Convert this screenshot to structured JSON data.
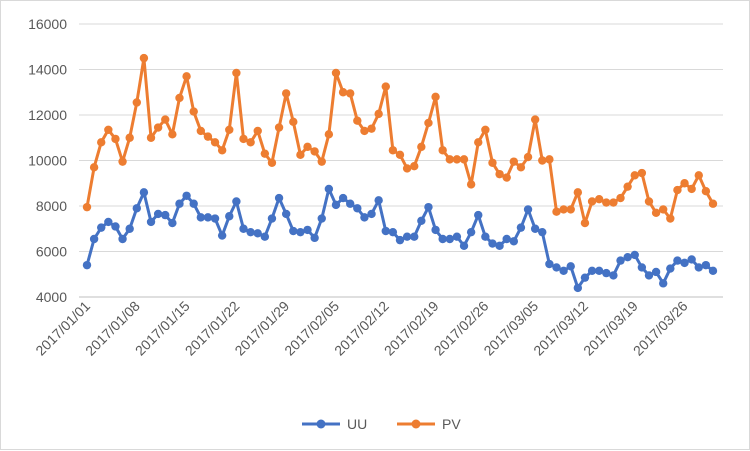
{
  "chart_data": {
    "type": "line",
    "title": "",
    "xlabel": "",
    "ylabel": "",
    "ylim": [
      4000,
      16000
    ],
    "yticks": [
      "4000",
      "6000",
      "8000",
      "10000",
      "12000",
      "14000",
      "16000"
    ],
    "ytick_values": [
      4000,
      6000,
      8000,
      10000,
      12000,
      14000,
      16000
    ],
    "x_tick_labels": [
      "2017/01/01",
      "2017/01/08",
      "2017/01/15",
      "2017/01/22",
      "2017/01/29",
      "2017/02/05",
      "2017/02/12",
      "2017/02/19",
      "2017/02/26",
      "2017/03/05",
      "2017/03/12",
      "2017/03/19",
      "2017/03/26"
    ],
    "x_start": "2017/01/01",
    "x_end": "2017/03/31",
    "grid": "horizontal",
    "legend_position": "bottom",
    "series": [
      {
        "name": "UU",
        "color": "#4472C4",
        "values": [
          5400,
          6550,
          7050,
          7300,
          7100,
          6550,
          7000,
          7900,
          8600,
          7300,
          7650,
          7600,
          7250,
          8100,
          8450,
          8100,
          7500,
          7500,
          7450,
          6700,
          7550,
          8200,
          7000,
          6850,
          6800,
          6650,
          7450,
          8350,
          7650,
          6900,
          6850,
          6950,
          6600,
          7450,
          8750,
          8050,
          8350,
          8100,
          7900,
          7500,
          7650,
          8250,
          6900,
          6850,
          6500,
          6650,
          6650,
          7350,
          7950,
          6950,
          6550,
          6550,
          6650,
          6250,
          6850,
          7600,
          6650,
          6350,
          6250,
          6550,
          6450,
          7050,
          7850,
          7000,
          6850,
          5450,
          5300,
          5150,
          5350,
          4400,
          4850,
          5150,
          5150,
          5050,
          4950,
          5600,
          5750,
          5850,
          5300,
          4950,
          5100,
          4600,
          5250,
          5600,
          5500,
          5650,
          5300,
          5400,
          5150
        ]
      },
      {
        "name": "PV",
        "color": "#ED7D31",
        "values": [
          7950,
          9700,
          10800,
          11350,
          10950,
          9950,
          11000,
          12550,
          14500,
          11000,
          11450,
          11800,
          11150,
          12750,
          13700,
          12150,
          11300,
          11050,
          10800,
          10450,
          11350,
          13850,
          10950,
          10800,
          11300,
          10300,
          9900,
          11450,
          12950,
          11700,
          10250,
          10600,
          10400,
          9950,
          11150,
          13850,
          13000,
          12950,
          11750,
          11300,
          11400,
          12050,
          13250,
          10450,
          10250,
          9650,
          9750,
          10600,
          11650,
          12800,
          10450,
          10050,
          10050,
          10050,
          8950,
          10800,
          11350,
          9900,
          9400,
          9250,
          9950,
          9700,
          10150,
          11800,
          10000,
          10050,
          7750,
          7850,
          7850,
          8600,
          7250,
          8200,
          8300,
          8150,
          8150,
          8350,
          8850,
          9350,
          9450,
          8200,
          7700,
          7850,
          7450,
          8700,
          9000,
          8750,
          9350,
          8650,
          8100
        ]
      }
    ]
  }
}
